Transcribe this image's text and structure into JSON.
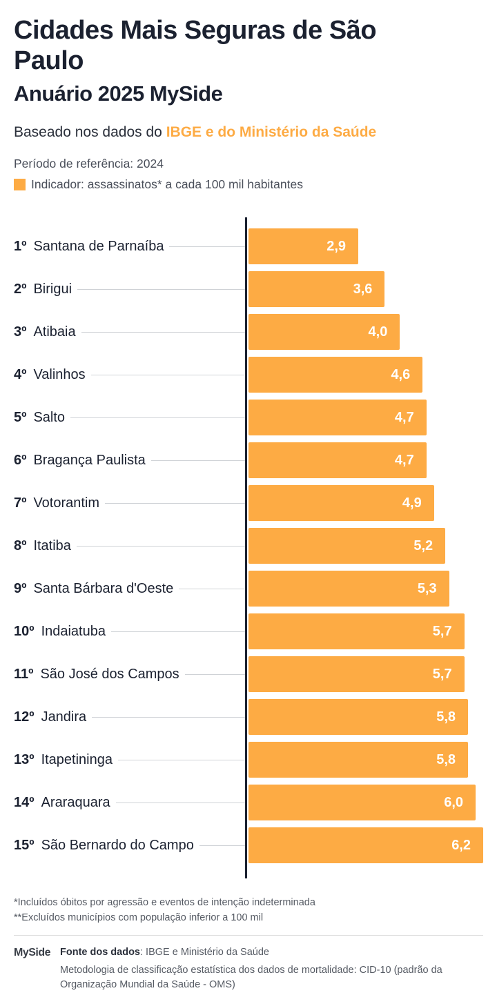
{
  "header": {
    "title": "Cidades Mais Seguras de São Paulo",
    "subtitle": "Anuário 2025 MySide",
    "based_prefix": "Baseado nos dados do ",
    "based_highlight": "IBGE e do Ministério da Saúde",
    "period": "Período de referência: 2024",
    "indicator": "Indicador: assassinatos* a cada 100 mil habitantes"
  },
  "colors": {
    "bar": "#fdab44",
    "text": "#1b2130"
  },
  "chart_data": {
    "type": "bar",
    "orientation": "horizontal",
    "categories": [
      "Santana de Parnaíba",
      "Birigui",
      "Atibaia",
      "Valinhos",
      "Salto",
      "Bragança Paulista",
      "Votorantim",
      "Itatiba",
      "Santa Bárbara d'Oeste",
      "Indaiatuba",
      "São José dos Campos",
      "Jandira",
      "Itapetininga",
      "Araraquara",
      "São Bernardo do Campo"
    ],
    "ranks": [
      "1º",
      "2º",
      "3º",
      "4º",
      "5º",
      "6º",
      "7º",
      "8º",
      "9º",
      "10º",
      "11º",
      "12º",
      "13º",
      "14º",
      "15º"
    ],
    "values": [
      2.9,
      3.6,
      4.0,
      4.6,
      4.7,
      4.7,
      4.9,
      5.2,
      5.3,
      5.7,
      5.7,
      5.8,
      5.8,
      6.0,
      6.2
    ],
    "value_labels": [
      "2,9",
      "3,6",
      "4,0",
      "4,6",
      "4,7",
      "4,7",
      "4,9",
      "5,2",
      "5,3",
      "5,7",
      "5,7",
      "5,8",
      "5,8",
      "6,0",
      "6,2"
    ],
    "xlim": [
      0,
      6.2
    ],
    "grid": false
  },
  "footer": {
    "note1": "*Incluídos óbitos por agressão e eventos de intenção indeterminada",
    "note2": "**Excluídos municípios com população inferior a 100 mil",
    "logo": "MySide",
    "source_label": "Fonte dos dados",
    "source_value": ": IBGE e Ministério da Saúde",
    "methodology": "Metodologia de classificação estatística dos dados de mortalidade: CID-10 (padrão da Organização Mundial da Saúde - OMS)"
  }
}
